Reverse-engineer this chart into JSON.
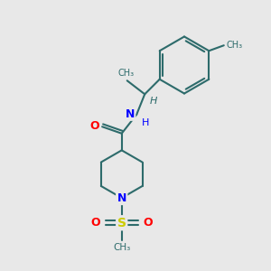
{
  "background_color": "#e8e8e8",
  "bond_color": "#2d6b6b",
  "n_color": "#0000ff",
  "o_color": "#ff0000",
  "s_color": "#cccc00",
  "text_color": "#2d6b6b",
  "line_width": 1.5,
  "figsize": [
    3.0,
    3.0
  ],
  "dpi": 100,
  "xlim": [
    0,
    10
  ],
  "ylim": [
    0,
    10
  ]
}
